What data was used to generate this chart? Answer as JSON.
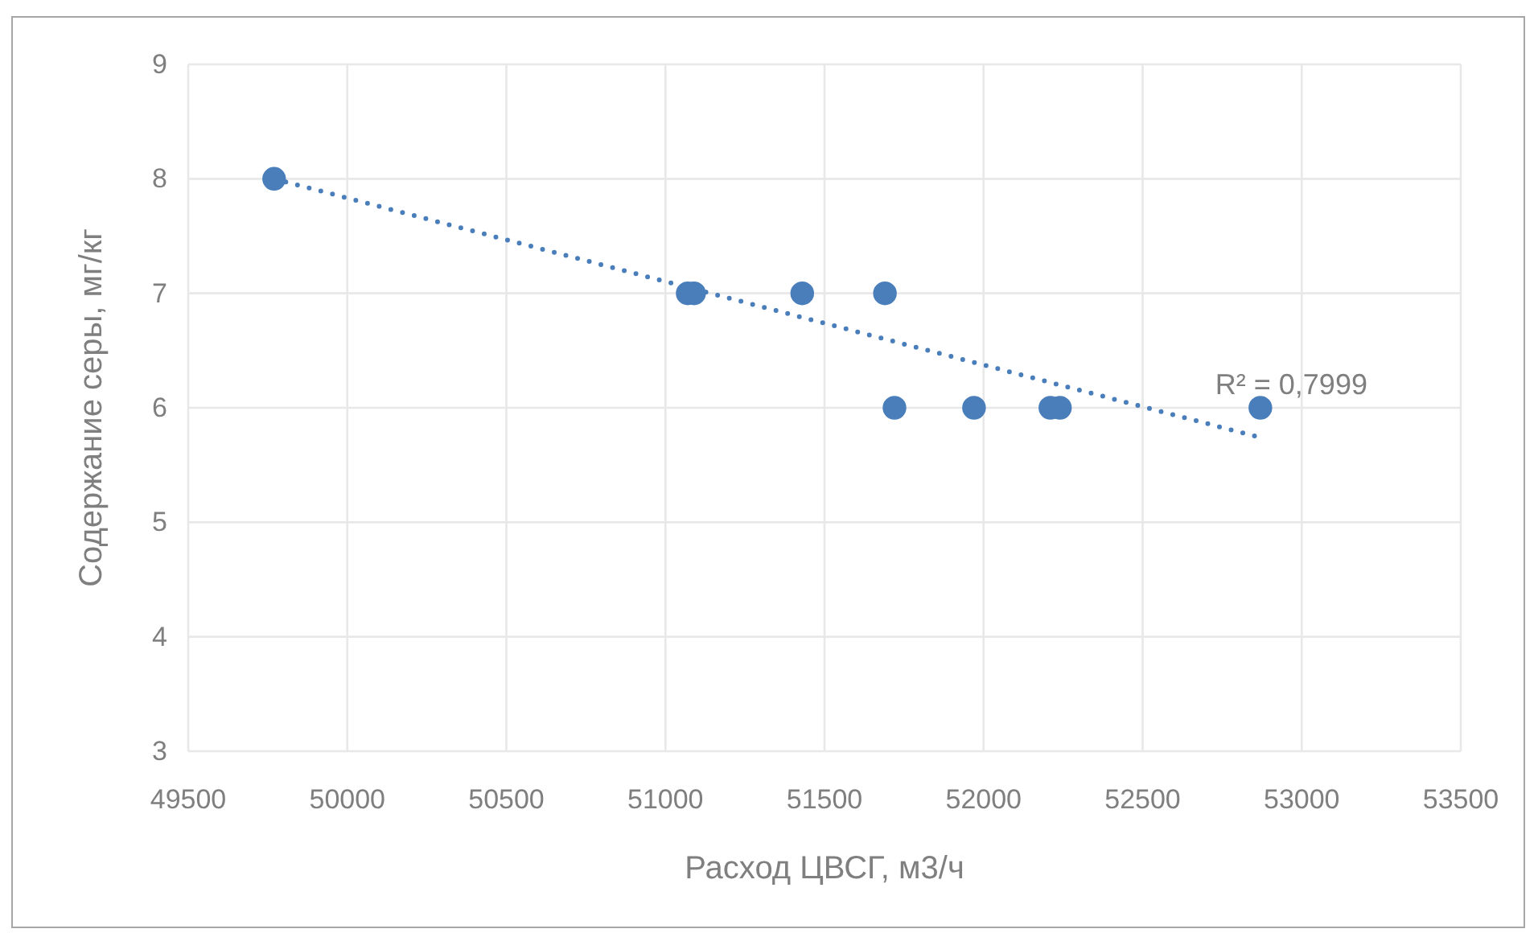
{
  "chart_data": {
    "type": "scatter",
    "xlabel": "Расход ЦВСГ, м3/ч",
    "ylabel": "Содержание серы, мг/кг",
    "xlim": [
      49500,
      53500
    ],
    "xticks": [
      49500,
      50000,
      50500,
      51000,
      51500,
      52000,
      52500,
      53000,
      53500
    ],
    "ylim": [
      3,
      9
    ],
    "yticks": [
      3,
      4,
      5,
      6,
      7,
      8,
      9
    ],
    "grid": true,
    "marker": "circle",
    "series": [
      {
        "color": "#4a7ebb",
        "x": [
          49770,
          51070,
          51090,
          51430,
          51690,
          51720,
          51970,
          52210,
          52240,
          52870
        ],
        "values": [
          8,
          7,
          7,
          7,
          7,
          6,
          6,
          6,
          6,
          6
        ]
      },
      {
        "type": "line",
        "color": "#4a7ebb",
        "x": [
          49770,
          52870
        ],
        "values": [
          8.0,
          5.74
        ],
        "line_style": "dotted",
        "marker": "none"
      }
    ],
    "annotations": [
      "R² = 0,7999"
    ]
  }
}
